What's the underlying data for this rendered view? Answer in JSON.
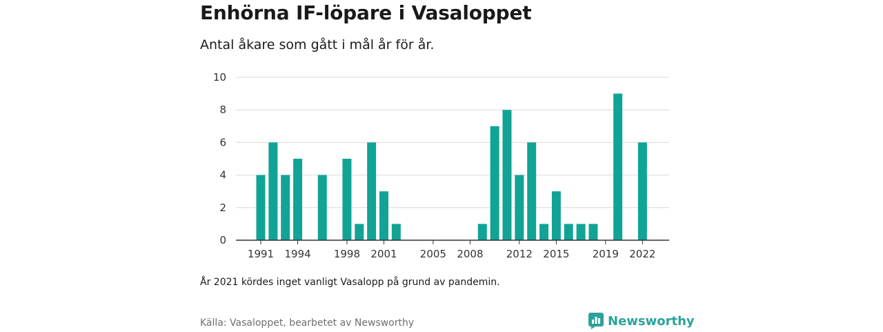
{
  "header": {
    "title": "Enhörna IF-löpare i Vasaloppet",
    "subtitle": "Antal åkare som gått i mål år för år."
  },
  "chart_data": {
    "type": "bar",
    "title": "Enhörna IF-löpare i Vasaloppet",
    "subtitle": "Antal åkare som gått i mål år för år.",
    "xlabel": "",
    "ylabel": "",
    "x": [
      1991,
      1992,
      1993,
      1994,
      1995,
      1996,
      1997,
      1998,
      1999,
      2000,
      2001,
      2002,
      2003,
      2004,
      2005,
      2006,
      2007,
      2008,
      2009,
      2010,
      2011,
      2012,
      2013,
      2014,
      2015,
      2016,
      2017,
      2018,
      2019,
      2020,
      2021,
      2022
    ],
    "values": [
      4,
      6,
      4,
      5,
      0,
      4,
      0,
      5,
      1,
      6,
      3,
      1,
      0,
      0,
      0,
      0,
      0,
      0,
      1,
      7,
      8,
      4,
      6,
      1,
      3,
      1,
      1,
      1,
      0,
      9,
      0,
      6
    ],
    "xticks": [
      "1991",
      "1994",
      "1998",
      "2001",
      "2005",
      "2008",
      "2012",
      "2015",
      "2019",
      "2022"
    ],
    "yticks": [
      "0",
      "2",
      "4",
      "6",
      "8",
      "10"
    ],
    "ylim": [
      0,
      10
    ],
    "grid": "horizontal",
    "legend": "none",
    "bar_color": "#11a396",
    "grid_color": "#d9d9d9",
    "axis_color": "#333333"
  },
  "footer": {
    "note": "År 2021 kördes inget vanligt Vasalopp på grund av pandemin.",
    "source": "Källa: Vasaloppet, bearbetet av Newsworthy",
    "brand_name": "Newsworthy",
    "brand_icon": "newsworthy-logo-icon",
    "brand_color": "#2aa39a"
  }
}
